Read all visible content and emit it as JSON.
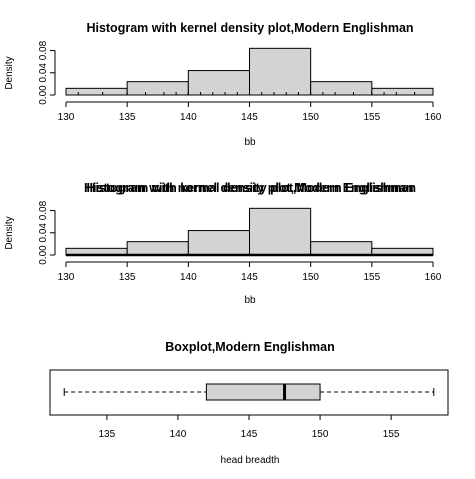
{
  "chart_data": [
    {
      "type": "bar",
      "title": "Histogram with kernel density plot,Modern Englishman",
      "xlabel": "bb",
      "ylabel": "Density",
      "bins": [
        [
          130,
          135
        ],
        [
          135,
          140
        ],
        [
          140,
          145
        ],
        [
          145,
          150
        ],
        [
          150,
          155
        ],
        [
          155,
          160
        ]
      ],
      "values": [
        0.012,
        0.024,
        0.044,
        0.084,
        0.024,
        0.012
      ],
      "xlim": [
        130,
        160
      ],
      "ylim": [
        0,
        0.09
      ],
      "xticks": [
        "130",
        "135",
        "140",
        "145",
        "150",
        "155",
        "160"
      ],
      "yticks": [
        "0.00",
        "0.04",
        "0.08"
      ],
      "rug": true,
      "grid": false
    },
    {
      "type": "bar",
      "title": "Histogram with kernel density plot,Modern Englishman",
      "title_overprint": "Histogram with normal density plot,Modern Englishman",
      "xlabel": "bb",
      "ylabel": "Density",
      "bins": [
        [
          130,
          135
        ],
        [
          135,
          140
        ],
        [
          140,
          145
        ],
        [
          145,
          150
        ],
        [
          150,
          155
        ],
        [
          155,
          160
        ]
      ],
      "values": [
        0.012,
        0.024,
        0.044,
        0.084,
        0.024,
        0.012
      ],
      "xlim": [
        130,
        160
      ],
      "ylim": [
        0,
        0.09
      ],
      "xticks": [
        "130",
        "135",
        "140",
        "145",
        "150",
        "155",
        "160"
      ],
      "yticks": [
        "0.00",
        "0.04",
        "0.08"
      ],
      "grid": false
    },
    {
      "type": "boxplot",
      "title": "Boxplot,Modern Englishman",
      "xlabel": "head breadth",
      "min": 132,
      "q1": 142,
      "median": 147.5,
      "q3": 150,
      "max": 158,
      "xlim": [
        131,
        159
      ],
      "xticks": [
        "135",
        "140",
        "145",
        "150",
        "155"
      ],
      "grid": false
    }
  ]
}
